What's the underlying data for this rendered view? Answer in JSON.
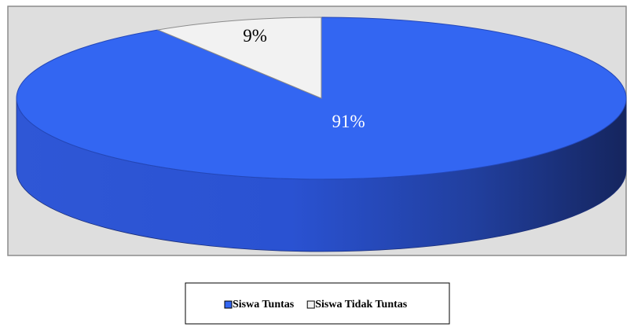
{
  "chart_data": {
    "type": "pie",
    "categories": [
      "Siswa Tuntas",
      "Siswa Tidak Tuntas"
    ],
    "values": [
      91,
      9
    ],
    "value_labels": [
      "91%",
      "9%"
    ],
    "colors": [
      "#3366f2",
      "#f2f2f2"
    ],
    "label_colors": [
      "#ffffff",
      "#000000"
    ],
    "legend": "bottom"
  }
}
